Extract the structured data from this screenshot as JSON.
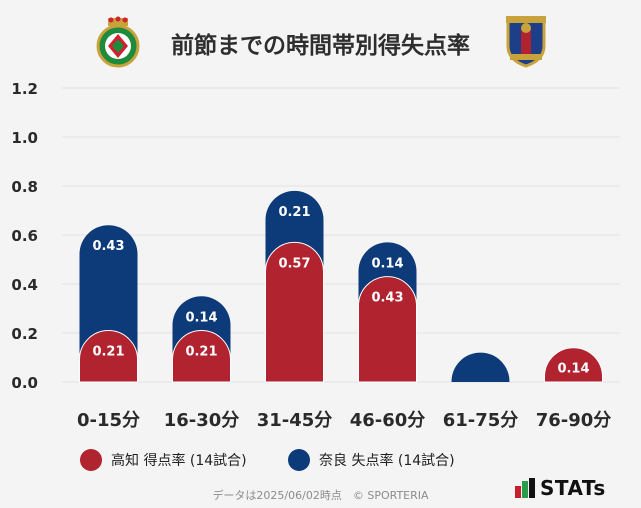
{
  "title": "前節までの時間帯別得失点率",
  "colors": {
    "kochi": "#b0232f",
    "nara": "#0d3a78",
    "grid": "#e2e2e2",
    "bg": "#f4f4f4"
  },
  "legend": [
    {
      "label": "高知 得点率 (14試合)",
      "color": "#b0232f"
    },
    {
      "label": "奈良 失点率 (14試合)",
      "color": "#0d3a78"
    }
  ],
  "footer": "データは2025/06/02時点　© SPORTERIA",
  "brand": "STATs",
  "chart_data": {
    "type": "bar",
    "stacked": true,
    "categories": [
      "0-15分",
      "16-30分",
      "31-45分",
      "46-60分",
      "61-75分",
      "76-90分"
    ],
    "series": [
      {
        "name": "高知 得点率 (14試合)",
        "values": [
          0.21,
          0.21,
          0.57,
          0.43,
          0,
          0.14
        ]
      },
      {
        "name": "奈良 失点率 (14試合)",
        "values": [
          0.43,
          0.14,
          0.21,
          0.14,
          0,
          0
        ]
      }
    ],
    "yticks": [
      "0.0",
      "0.2",
      "0.4",
      "0.6",
      "0.8",
      "1.0",
      "1.2"
    ],
    "ylim": [
      0,
      1.2
    ],
    "grid": true,
    "legend_position": "bottom",
    "xlabel": "",
    "ylabel": ""
  }
}
